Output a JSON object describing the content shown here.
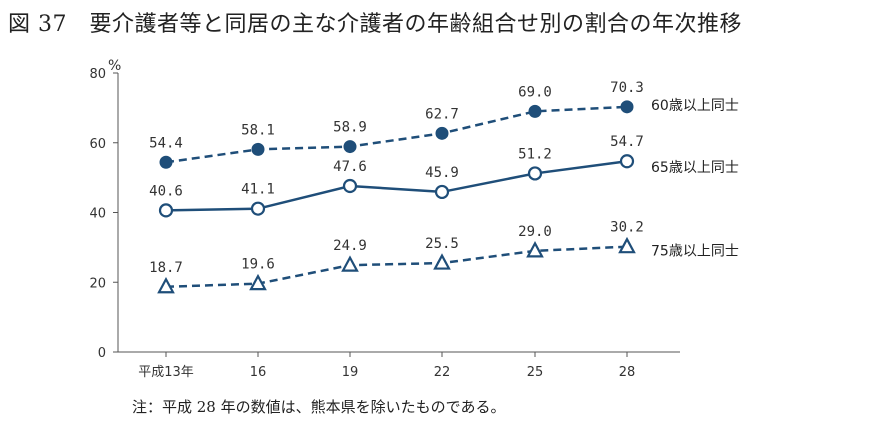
{
  "title": "図 37　要介護者等と同居の主な介護者の年齢組合せ別の割合の年次推移",
  "note": "注：平成 28 年の数値は、熊本県を除いたものである。",
  "chart_data": {
    "type": "line",
    "title": "図 37　要介護者等と同居の主な介護者の年齢組合せ別の割合の年次推移",
    "ylabel": "%",
    "xlabel": "",
    "categories": [
      "平成13年",
      "16",
      "19",
      "22",
      "25",
      "28"
    ],
    "ylim": [
      0,
      80
    ],
    "yticks": [
      0,
      20,
      40,
      60,
      80
    ],
    "grid": false,
    "legend": "direct labels at right end of each line",
    "series": [
      {
        "name": "60歳以上同士",
        "values": [
          54.4,
          58.1,
          58.9,
          62.7,
          69.0,
          70.3
        ],
        "labels": [
          "54.4",
          "58.1",
          "58.9",
          "62.7",
          "69.0",
          "70.3"
        ],
        "style": "dashed",
        "marker": "filled-circle",
        "color": "#1f4e79"
      },
      {
        "name": "65歳以上同士",
        "values": [
          40.6,
          41.1,
          47.6,
          45.9,
          51.2,
          54.7
        ],
        "labels": [
          "40.6",
          "41.1",
          "47.6",
          "45.9",
          "51.2",
          "54.7"
        ],
        "style": "solid",
        "marker": "open-circle",
        "color": "#1f4e79"
      },
      {
        "name": "75歳以上同士",
        "values": [
          18.7,
          19.6,
          24.9,
          25.5,
          29.0,
          30.2
        ],
        "labels": [
          "18.7",
          "19.6",
          "24.9",
          "25.5",
          "29.0",
          "30.2"
        ],
        "style": "dashed",
        "marker": "open-triangle",
        "color": "#1f4e79"
      }
    ]
  }
}
